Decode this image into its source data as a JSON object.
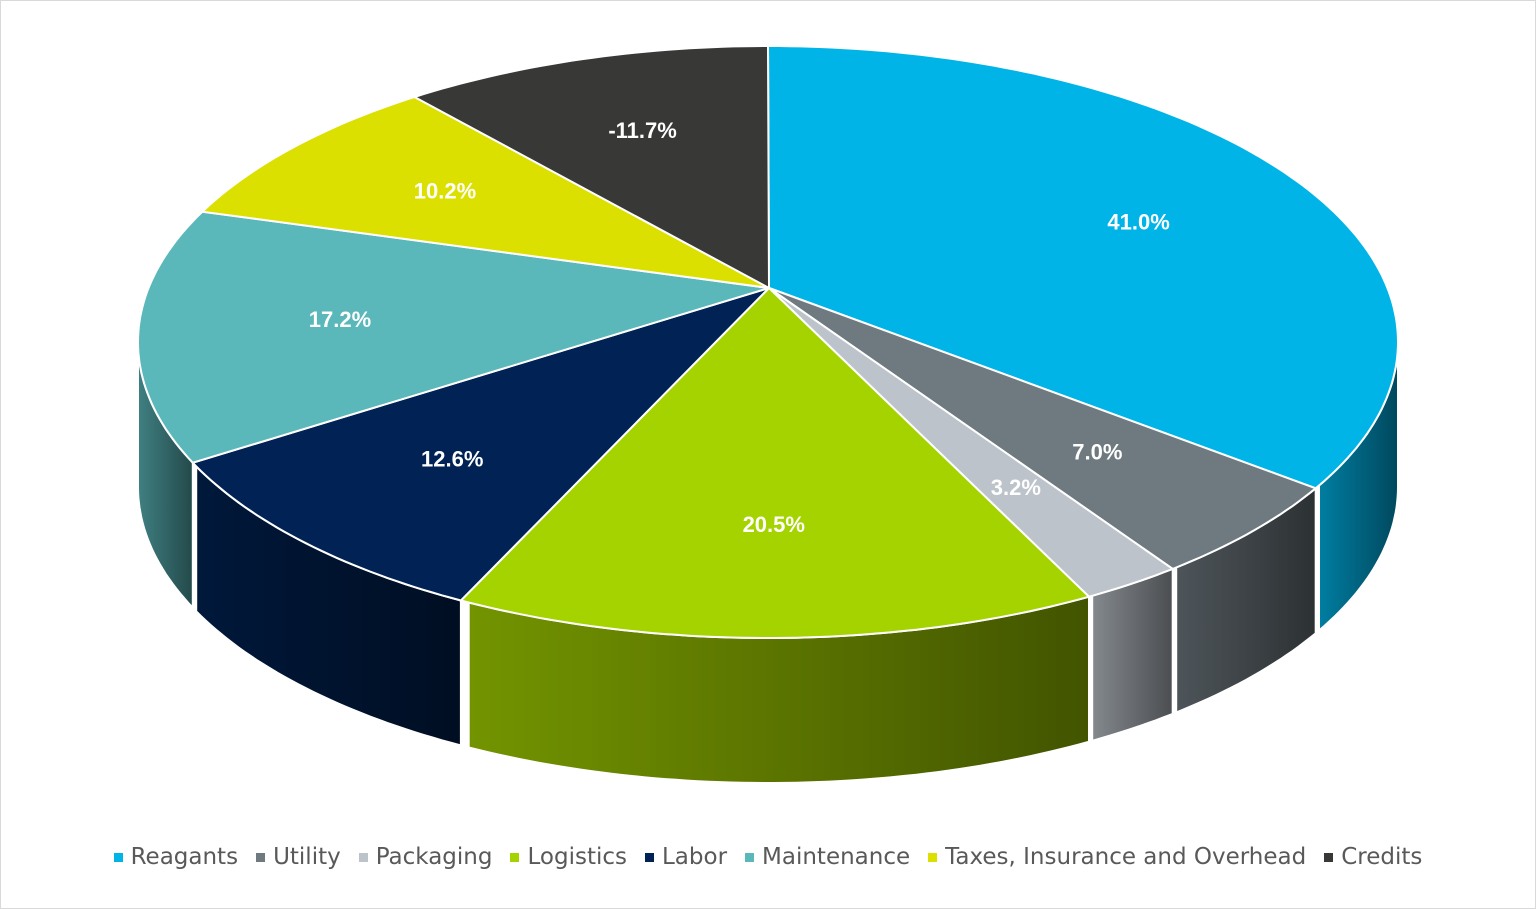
{
  "chart_data": {
    "type": "pie",
    "style": "3d",
    "legend_position": "bottom",
    "categories": [
      "Reagants",
      "Utility",
      "Packaging",
      "Logistics",
      "Labor",
      "Maintenance",
      "Taxes, Insurance and Overhead",
      "Credits"
    ],
    "values": [
      41.0,
      7.0,
      3.2,
      20.5,
      12.6,
      17.2,
      10.2,
      -11.7
    ],
    "labels": [
      "41.0%",
      "7.0%",
      "3.2%",
      "20.5%",
      "12.6%",
      "17.2%",
      "10.2%",
      "-11.7%"
    ],
    "colors": [
      "#00B4E8",
      "#6F7A80",
      "#BCC3CB",
      "#A5D300",
      "#002255",
      "#5AB7BA",
      "#DCE000",
      "#383937"
    ]
  }
}
